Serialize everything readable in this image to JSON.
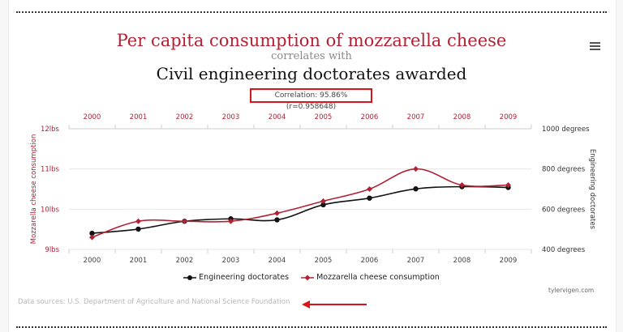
{
  "title": "Per capita consumption of mozzarella cheese",
  "connector": "correlates with",
  "subtitle": "Civil engineering doctorates awarded",
  "correlation": "Correlation: 95.86% (r=0.958648)",
  "legend": {
    "engineering": "Engineering doctorates",
    "cheese": "Mozzarella cheese consumption"
  },
  "credit": "tylervigen.com",
  "source": "Data sources: U.S. Department of Agriculture and National Science Foundation",
  "colors": {
    "cheese": "#b22234",
    "engineering": "#111111",
    "annotation": "#d8151b"
  },
  "chart_data": {
    "type": "line",
    "x": [
      "2000",
      "2001",
      "2002",
      "2003",
      "2004",
      "2005",
      "2006",
      "2007",
      "2008",
      "2009"
    ],
    "x_top": [
      "2000",
      "2001",
      "2002",
      "2003",
      "2004",
      "2005",
      "2006",
      "2007",
      "2008",
      "2009"
    ],
    "y_left_label": "Mozzarella cheese consumption",
    "y_left_range": [
      9,
      12
    ],
    "y_left_ticks": [
      "9lbs",
      "10lbs",
      "11lbs",
      "12lbs"
    ],
    "y_right_label": "Engineering doctorates",
    "y_right_range": [
      400,
      1000
    ],
    "y_right_ticks": [
      "400 degrees",
      "600 degrees",
      "800 degrees",
      "1000 degrees"
    ],
    "series": [
      {
        "name": "Engineering doctorates",
        "axis": "right",
        "color": "#111111",
        "values": [
          480,
          501,
          540,
          552,
          547,
          622,
          655,
          701,
          712,
          708
        ]
      },
      {
        "name": "Mozzarella cheese consumption",
        "axis": "left",
        "color": "#b22234",
        "values": [
          9.3,
          9.7,
          9.7,
          9.7,
          9.9,
          10.2,
          10.5,
          11.0,
          10.6,
          10.6
        ]
      }
    ],
    "grid": true
  }
}
